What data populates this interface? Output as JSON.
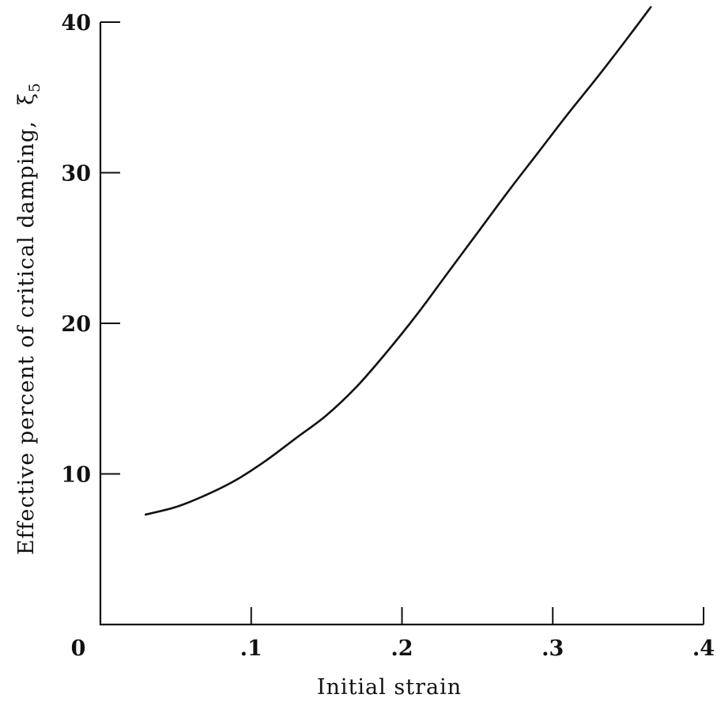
{
  "chart_data": {
    "type": "line",
    "xlabel": "Initial strain",
    "ylabel": "Effective percent of critical damping,",
    "ylabel_symbol": "ξ",
    "ylabel_subscript": "5",
    "xlim": [
      0,
      0.4
    ],
    "ylim": [
      0,
      40
    ],
    "x_ticks": [
      0.1,
      0.2,
      0.3,
      0.4
    ],
    "x_tick_labels": [
      ".1",
      ".2",
      ".3",
      ".4"
    ],
    "y_ticks": [
      10,
      20,
      30,
      40
    ],
    "y_tick_labels": [
      "10",
      "20",
      "30",
      "40"
    ],
    "origin_label": "0",
    "grid": false,
    "series": [
      {
        "x": [
          0.03,
          0.05,
          0.07,
          0.09,
          0.11,
          0.13,
          0.15,
          0.17,
          0.19,
          0.21,
          0.23,
          0.25,
          0.27,
          0.29,
          0.31,
          0.33,
          0.35,
          0.365
        ],
        "y": [
          7.3,
          7.8,
          8.6,
          9.6,
          10.9,
          12.4,
          13.9,
          15.8,
          18.1,
          20.6,
          23.3,
          26.0,
          28.7,
          31.3,
          33.9,
          36.4,
          39.0,
          41.0
        ]
      }
    ]
  }
}
